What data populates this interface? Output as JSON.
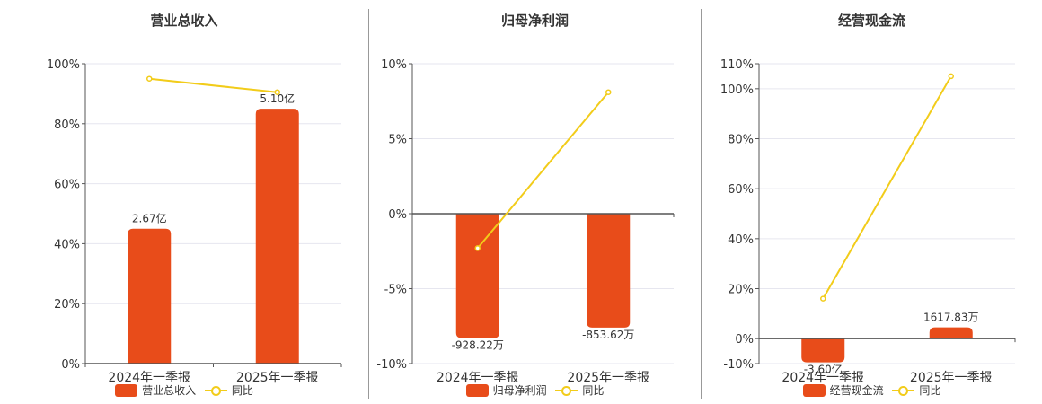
{
  "colors": {
    "bar": "#e84c1a",
    "line": "#f2cc1a",
    "grid": "#e6e6ef",
    "axis": "#555555",
    "text": "#333333"
  },
  "legend_line_label": "同比",
  "chart_data": [
    {
      "type": "bar",
      "title": "营业总收入",
      "categories": [
        "2024年一季报",
        "2025年一季报"
      ],
      "series": [
        {
          "name": "营业总收入",
          "type": "bar",
          "values": [
            45,
            85
          ],
          "labels": [
            "2.67亿",
            "5.10亿"
          ]
        },
        {
          "name": "同比",
          "type": "line",
          "values": [
            95,
            90.5
          ]
        }
      ],
      "yticks": [
        "0%",
        "20%",
        "40%",
        "60%",
        "80%",
        "100%"
      ],
      "ylim": [
        0,
        100
      ]
    },
    {
      "type": "bar",
      "title": "归母净利润",
      "categories": [
        "2024年一季报",
        "2025年一季报"
      ],
      "series": [
        {
          "name": "归母净利润",
          "type": "bar",
          "values": [
            -8.3,
            -7.6
          ],
          "labels": [
            "-928.22万",
            "-853.62万"
          ]
        },
        {
          "name": "同比",
          "type": "line",
          "values": [
            -2.3,
            8.1
          ]
        }
      ],
      "yticks": [
        "-10%",
        "-5%",
        "0%",
        "5%",
        "10%"
      ],
      "ylim": [
        -10,
        10
      ]
    },
    {
      "type": "bar",
      "title": "经营现金流",
      "categories": [
        "2024年一季报",
        "2025年一季报"
      ],
      "series": [
        {
          "name": "经营现金流",
          "type": "bar",
          "values": [
            -9.5,
            4.5
          ],
          "labels": [
            "-3.60亿",
            "1617.83万"
          ]
        },
        {
          "name": "同比",
          "type": "line",
          "values": [
            16,
            105
          ]
        }
      ],
      "yticks": [
        "-10%",
        "0%",
        "20%",
        "40%",
        "60%",
        "80%",
        "100%",
        "110%"
      ],
      "ylim": [
        -10,
        110
      ]
    }
  ]
}
